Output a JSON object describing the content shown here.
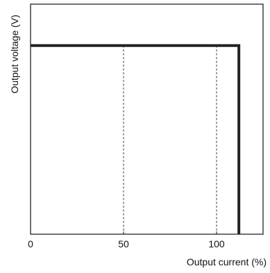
{
  "chart_data": {
    "type": "line",
    "xlabel": "Output current (%)",
    "ylabel": "Output voltage (V)",
    "xlim": [
      0,
      125
    ],
    "x_ticks": [
      0,
      50,
      100
    ],
    "x_tick_labels": [
      "0",
      "50",
      "100"
    ],
    "reference_lines_x": [
      50,
      100
    ],
    "reference_line_style": "dashed",
    "series": [
      {
        "x": [
          0,
          112,
          112
        ],
        "y": [
          0.82,
          0.82,
          0
        ]
      }
    ],
    "grid": false,
    "line_color": "#222222"
  }
}
